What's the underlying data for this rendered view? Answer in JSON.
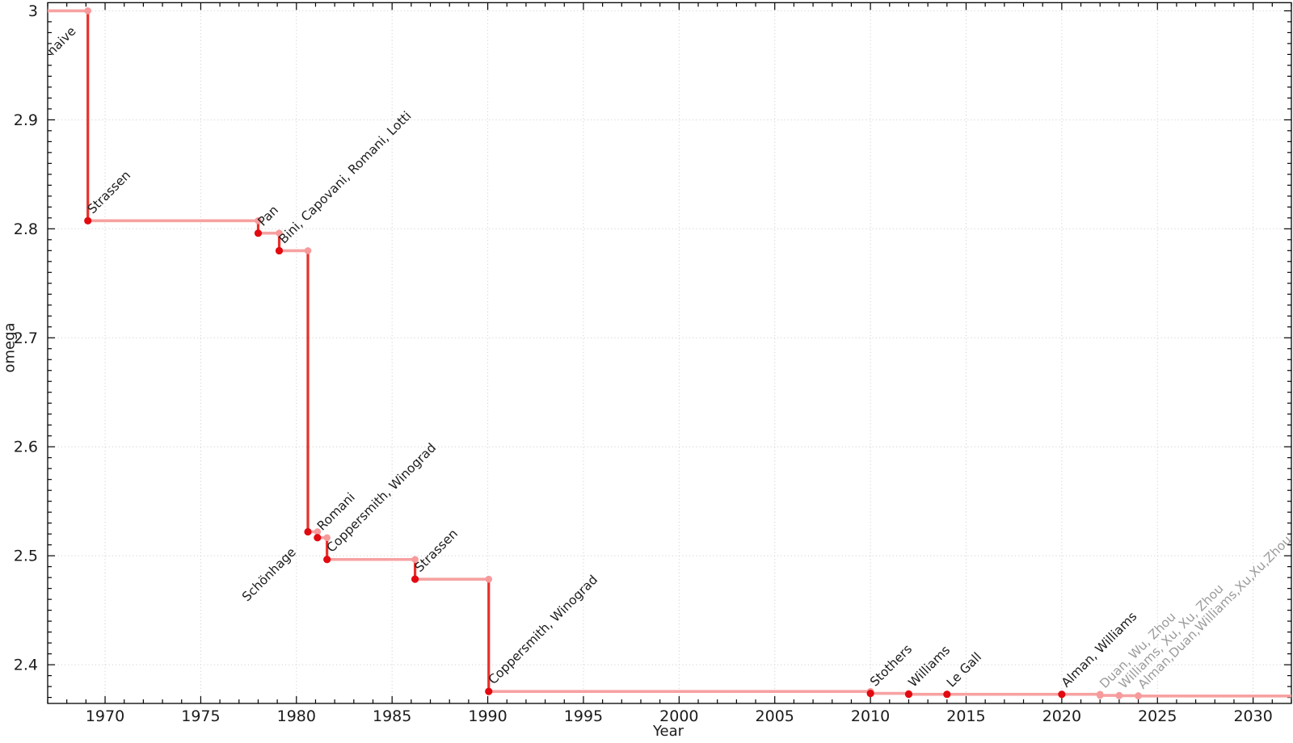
{
  "page": {
    "background": "#ffffff",
    "description_hidden": false
  },
  "chart_data": {
    "type": "line",
    "line_style": "step-post",
    "title": "",
    "xlabel": "Year",
    "ylabel": "omega",
    "xlim": [
      1967,
      2032
    ],
    "ylim": [
      2.3645,
      3.0075
    ],
    "grid": true,
    "legend": false,
    "x_major_ticks": [
      1970,
      1975,
      1980,
      1985,
      1990,
      1995,
      2000,
      2005,
      2010,
      2015,
      2020,
      2025,
      2030
    ],
    "x_minor_step": 1,
    "y_major_ticks": [
      3.0,
      2.9,
      2.8,
      2.7,
      2.6,
      2.5,
      2.4
    ],
    "y_tick_labels": [
      "3",
      "2.9",
      "2.8",
      "2.7",
      "2.6",
      "2.5",
      "2.4"
    ],
    "y_minor_step": 0.01,
    "start": {
      "year": 1967,
      "omega": 3.0
    },
    "start_label": {
      "text": "naive",
      "label_side": "below"
    },
    "end_year": 2032,
    "points": [
      {
        "year": 1969.1,
        "omega": 2.8074,
        "label": "Strassen",
        "label_side": "above",
        "muted": false
      },
      {
        "year": 1978.0,
        "omega": 2.796,
        "label": "Pan",
        "label_side": "above",
        "muted": false
      },
      {
        "year": 1979.1,
        "omega": 2.7799,
        "label": "Bini, Capovani, Romani, Lotti",
        "label_side": "above",
        "muted": false
      },
      {
        "year": 1980.6,
        "omega": 2.522,
        "label": "Schönhage",
        "label_side": "below",
        "muted": false
      },
      {
        "year": 1981.1,
        "omega": 2.5166,
        "label": "Romani",
        "label_side": "above",
        "muted": false
      },
      {
        "year": 1981.6,
        "omega": 2.4966,
        "label": "Coppersmith, Winograd",
        "label_side": "above",
        "muted": false
      },
      {
        "year": 1986.2,
        "omega": 2.4785,
        "label": "Strassen",
        "label_side": "above",
        "muted": false
      },
      {
        "year": 1990.05,
        "omega": 2.3755,
        "label": "Coppersmith, Winograd",
        "label_side": "above",
        "muted": false
      },
      {
        "year": 2010.0,
        "omega": 2.3737,
        "label": "Stothers",
        "label_side": "above",
        "muted": false
      },
      {
        "year": 2012.0,
        "omega": 2.3729,
        "label": "Williams",
        "label_side": "above",
        "muted": false
      },
      {
        "year": 2014.0,
        "omega": 2.3728639,
        "label": "Le Gall",
        "label_side": "above",
        "muted": false
      },
      {
        "year": 2020.0,
        "omega": 2.3728596,
        "label": "Alman, Williams",
        "label_side": "above",
        "muted": false
      },
      {
        "year": 2022.0,
        "omega": 2.371866,
        "label": "Duan, Wu, Zhou",
        "label_side": "above",
        "muted": true
      },
      {
        "year": 2023.0,
        "omega": 2.371552,
        "label": "Williams, Xu, Xu, Zhou",
        "label_side": "above",
        "muted": true
      },
      {
        "year": 2024.0,
        "omega": 2.371339,
        "label": "Alman,Duan,Williams,Xu,Xu,Zhou",
        "label_side": "above",
        "muted": true
      }
    ],
    "colors": {
      "line_horizontal": "#f7a1a1",
      "line_vertical": "#e8302a",
      "marker_strong": "#e20a10",
      "marker_muted": "#f79a9b",
      "label_strong": "#1c1c1c",
      "label_muted": "#9c9c9c",
      "grid": "#d2d2d2",
      "axis": "#000000",
      "tick_label": "#1c1c1c"
    }
  }
}
